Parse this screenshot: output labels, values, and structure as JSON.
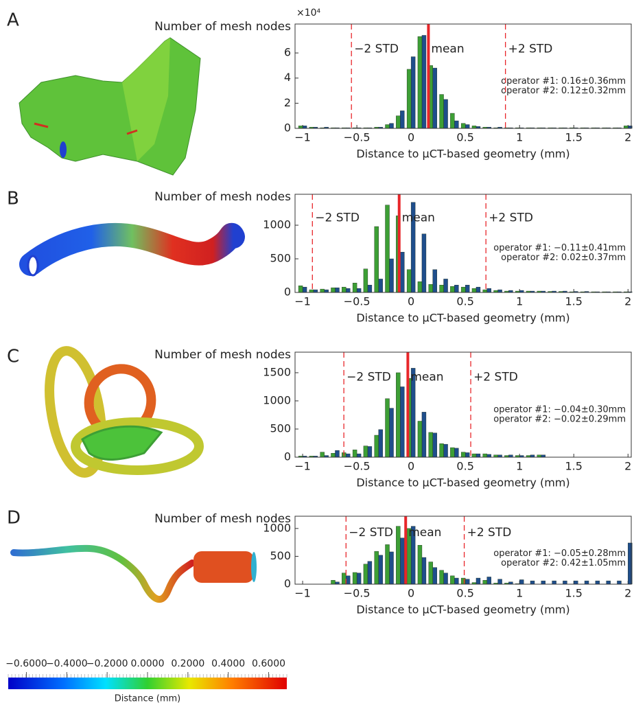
{
  "chart_data": [
    {
      "type": "bar",
      "panel": "A",
      "ylabel": "Number of mesh nodes",
      "y_multiplier": "×10⁴",
      "xlabel": "Distance to µCT-based geometry (mm)",
      "x": [
        -1,
        -0.9,
        -0.8,
        -0.7,
        -0.6,
        -0.5,
        -0.4,
        -0.3,
        -0.2,
        -0.1,
        0,
        0.1,
        0.2,
        0.3,
        0.4,
        0.5,
        0.6,
        0.7,
        0.8,
        0.9,
        1,
        1.1,
        1.2,
        1.3,
        1.4,
        1.5,
        1.6,
        1.7,
        1.8,
        1.9,
        2
      ],
      "series": [
        {
          "name": "operator #1: 0.16±0.36mm",
          "color": "#1f4e8c",
          "label_color": "#2a63b0",
          "values": [
            0.2,
            0.1,
            0.1,
            0.05,
            0.05,
            0.05,
            0.05,
            0.1,
            0.4,
            1.4,
            5.7,
            7.4,
            4.8,
            2.3,
            0.6,
            0.3,
            0.15,
            0.1,
            0.1,
            0.05,
            0.05,
            0.05,
            0.05,
            0.05,
            0.05,
            0.05,
            0.05,
            0.05,
            0.05,
            0.05,
            0.2
          ]
        },
        {
          "name": "operator #2: 0.12±0.32mm",
          "color": "#3d9f35",
          "label_color": "#3d9f35",
          "values": [
            0.2,
            0.1,
            0.05,
            0.05,
            0.05,
            0.05,
            0.05,
            0.1,
            0.3,
            1.0,
            4.7,
            7.3,
            5.0,
            2.7,
            1.2,
            0.4,
            0.2,
            0.1,
            0.05,
            0.05,
            0.05,
            0.05,
            0.05,
            0.05,
            0.05,
            0.05,
            0.05,
            0.05,
            0.05,
            0.05,
            0.2
          ]
        }
      ],
      "lines": [
        {
          "label": "−2 STD",
          "value": -0.55,
          "style": "dashed"
        },
        {
          "label": "mean",
          "value": 0.16,
          "style": "solid"
        },
        {
          "label": "+2 STD",
          "value": 0.87,
          "style": "dashed"
        }
      ],
      "xlim": [
        -1.07,
        2.03
      ],
      "xticks": [
        {
          "value": -1,
          "label": "−1"
        },
        {
          "value": -0.5,
          "label": "−0.5"
        },
        0,
        0.5,
        1,
        1.5,
        2
      ],
      "ylim": [
        0,
        8.3
      ],
      "yticks": [
        0,
        2,
        4,
        6
      ]
    },
    {
      "type": "bar",
      "panel": "B",
      "ylabel": "Number of mesh nodes",
      "xlabel": "Distance to µCT-based geometry (mm)",
      "x": [
        -1,
        -0.9,
        -0.8,
        -0.7,
        -0.6,
        -0.5,
        -0.4,
        -0.3,
        -0.2,
        -0.1,
        0,
        0.1,
        0.2,
        0.3,
        0.4,
        0.5,
        0.6,
        0.7,
        0.8,
        0.9,
        1,
        1.1,
        1.2,
        1.3,
        1.4,
        1.5,
        1.6,
        1.7,
        1.8,
        1.9,
        2
      ],
      "series": [
        {
          "name": "operator #1: −0.11±0.41mm",
          "color": "#1f4e8c",
          "label_color": "#2a63b0",
          "values": [
            80,
            40,
            40,
            70,
            60,
            60,
            110,
            200,
            500,
            600,
            1340,
            870,
            340,
            200,
            110,
            110,
            80,
            60,
            40,
            30,
            30,
            20,
            20,
            20,
            20,
            15,
            15,
            10,
            10,
            10,
            10
          ]
        },
        {
          "name": "operator #2: 0.02±0.37mm",
          "color": "#3d9f35",
          "label_color": "#3d9f35",
          "values": [
            100,
            40,
            50,
            70,
            80,
            140,
            350,
            980,
            1300,
            1140,
            340,
            160,
            120,
            110,
            90,
            80,
            60,
            40,
            30,
            20,
            20,
            20,
            20,
            15,
            15,
            10,
            10,
            10,
            10,
            10,
            10
          ]
        }
      ],
      "lines": [
        {
          "label": "−2 STD",
          "value": -0.91,
          "style": "dashed"
        },
        {
          "label": "mean",
          "value": -0.11,
          "style": "solid"
        },
        {
          "label": "+2 STD",
          "value": 0.69,
          "style": "dashed"
        }
      ],
      "xlim": [
        -1.07,
        2.03
      ],
      "xticks": [
        {
          "value": -1,
          "label": "−1"
        },
        {
          "value": -0.5,
          "label": "−0.5"
        },
        0,
        0.5,
        1,
        1.5,
        2
      ],
      "ylim": [
        0,
        1460
      ],
      "yticks": [
        0,
        500,
        1000
      ]
    },
    {
      "type": "bar",
      "panel": "C",
      "ylabel": "Number of mesh nodes",
      "xlabel": "Distance to µCT-based geometry (mm)",
      "x": [
        -1,
        -0.9,
        -0.8,
        -0.7,
        -0.6,
        -0.5,
        -0.4,
        -0.3,
        -0.2,
        -0.1,
        0,
        0.1,
        0.2,
        0.3,
        0.4,
        0.5,
        0.6,
        0.7,
        0.8,
        0.9,
        1,
        1.1,
        1.2,
        1.3,
        1.4,
        1.5,
        1.6,
        1.7,
        1.8,
        1.9,
        2
      ],
      "series": [
        {
          "name": "operator #1: −0.04±0.30mm",
          "color": "#1f4e8c",
          "label_color": "#2a63b0",
          "values": [
            20,
            20,
            30,
            120,
            60,
            60,
            190,
            490,
            870,
            1250,
            1580,
            800,
            430,
            230,
            160,
            80,
            60,
            50,
            40,
            40,
            30,
            40,
            40,
            0,
            0,
            0,
            0,
            0,
            0,
            0,
            0
          ]
        },
        {
          "name": "operator #2: −0.02±0.29mm",
          "color": "#3d9f35",
          "label_color": "#3d9f35",
          "values": [
            20,
            20,
            90,
            70,
            80,
            130,
            200,
            390,
            1040,
            1500,
            1400,
            640,
            440,
            240,
            170,
            90,
            60,
            60,
            40,
            30,
            30,
            30,
            40,
            0,
            0,
            0,
            0,
            0,
            0,
            0,
            0
          ]
        }
      ],
      "lines": [
        {
          "label": "−2 STD",
          "value": -0.62,
          "style": "dashed"
        },
        {
          "label": "mean",
          "value": -0.03,
          "style": "solid"
        },
        {
          "label": "+2 STD",
          "value": 0.55,
          "style": "dashed"
        }
      ],
      "xlim": [
        -1.07,
        2.03
      ],
      "xticks": [
        {
          "value": -1,
          "label": "−1"
        },
        {
          "value": -0.5,
          "label": "−0.5"
        },
        0,
        0.5,
        1,
        1.5,
        2
      ],
      "ylim": [
        0,
        1865
      ],
      "yticks": [
        0,
        500,
        1000,
        1500
      ]
    },
    {
      "type": "bar",
      "panel": "D",
      "ylabel": "Number of mesh nodes",
      "xlabel": "Distance to µCT-based geometry (mm)",
      "x": [
        -1,
        -0.9,
        -0.8,
        -0.7,
        -0.6,
        -0.5,
        -0.4,
        -0.3,
        -0.2,
        -0.1,
        0,
        0.1,
        0.2,
        0.3,
        0.4,
        0.5,
        0.6,
        0.7,
        0.8,
        0.9,
        1,
        1.1,
        1.2,
        1.3,
        1.4,
        1.5,
        1.6,
        1.7,
        1.8,
        1.9,
        2
      ],
      "series": [
        {
          "name": "operator #1: −0.05±0.28mm",
          "color": "#1f4e8c",
          "label_color": "#2a63b0",
          "values": [
            0,
            0,
            0,
            40,
            150,
            200,
            410,
            520,
            580,
            830,
            1040,
            480,
            300,
            200,
            110,
            90,
            110,
            130,
            90,
            40,
            80,
            60,
            60,
            60,
            60,
            60,
            60,
            60,
            60,
            60,
            740
          ]
        },
        {
          "name": "operator #2: 0.42±1.05mm",
          "color": "#3d9f35",
          "label_color": "#3d9f35",
          "values": [
            0,
            0,
            0,
            70,
            200,
            210,
            360,
            590,
            710,
            1040,
            1000,
            700,
            400,
            250,
            150,
            110,
            30,
            70,
            20,
            20,
            10,
            0,
            0,
            0,
            0,
            0,
            0,
            0,
            0,
            0,
            0
          ]
        }
      ],
      "lines": [
        {
          "label": "−2 STD",
          "value": -0.6,
          "style": "dashed"
        },
        {
          "label": "mean",
          "value": -0.05,
          "style": "solid"
        },
        {
          "label": "+2 STD",
          "value": 0.49,
          "style": "dashed"
        }
      ],
      "xlim": [
        -1.07,
        2.03
      ],
      "xticks": [
        {
          "value": -1,
          "label": "−1"
        },
        {
          "value": -0.5,
          "label": "−0.5"
        },
        0,
        0.5,
        1,
        1.5,
        2
      ],
      "ylim": [
        0,
        1220
      ],
      "yticks": [
        0,
        500,
        1000
      ]
    }
  ],
  "colorbar": {
    "label": "Distance (mm)",
    "lim": [
      -0.69,
      0.69
    ],
    "ticks": [
      {
        "value": -0.6,
        "label": "−0.6000"
      },
      {
        "value": -0.4,
        "label": "−0.4000"
      },
      {
        "value": -0.2,
        "label": "−0.2000"
      },
      {
        "value": 0,
        "label": "0.0000"
      },
      {
        "value": 0.2,
        "label": "0.2000"
      },
      {
        "value": 0.4,
        "label": "0.4000"
      },
      {
        "value": 0.6,
        "label": "0.6000"
      }
    ]
  }
}
